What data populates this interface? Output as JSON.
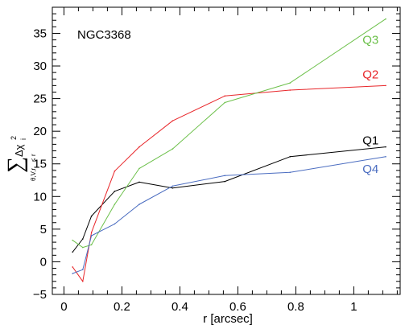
{
  "chart_data": {
    "type": "line",
    "annotation": "NGC3368",
    "xlabel": "r [arcsec]",
    "ylabel": {
      "sum": "∑",
      "term": "Δχ",
      "term_sup": "2",
      "term_sub": "i",
      "sub_line": "θ,V,r",
      "sub_rel": "≤",
      "sub_end": "r"
    },
    "xlim": [
      -0.04,
      1.16
    ],
    "ylim": [
      -5,
      39
    ],
    "xticks": [
      0,
      0.2,
      0.4,
      0.6,
      0.8,
      1
    ],
    "xtick_labels": [
      "0",
      "0.2",
      "0.4",
      "0.6",
      "0.8",
      "1"
    ],
    "yticks": [
      -5,
      0,
      5,
      10,
      15,
      20,
      25,
      30,
      35
    ],
    "ytick_labels": [
      "−5",
      "0",
      "5",
      "10",
      "15",
      "20",
      "25",
      "30",
      "35"
    ],
    "grid": false,
    "series": [
      {
        "name": "Q1",
        "color": "#000000",
        "x": [
          0.03,
          0.065,
          0.095,
          0.175,
          0.26,
          0.375,
          0.555,
          0.78,
          1.11
        ],
        "y": [
          1.5,
          3.5,
          7.0,
          10.8,
          12.2,
          11.3,
          12.3,
          16.1,
          17.6
        ]
      },
      {
        "name": "Q2",
        "color": "#e8262a",
        "x": [
          0.03,
          0.065,
          0.095,
          0.175,
          0.26,
          0.375,
          0.555,
          0.78,
          1.11
        ],
        "y": [
          -0.8,
          -3.0,
          4.5,
          13.9,
          17.6,
          21.6,
          25.4,
          26.3,
          27.0
        ]
      },
      {
        "name": "Q3",
        "color": "#6cc04a",
        "x": [
          0.03,
          0.065,
          0.095,
          0.175,
          0.26,
          0.375,
          0.555,
          0.78,
          1.11
        ],
        "y": [
          3.3,
          2.2,
          2.6,
          8.8,
          14.3,
          17.3,
          24.4,
          27.4,
          37.2
        ]
      },
      {
        "name": "Q4",
        "color": "#4a6cc0",
        "x": [
          0.03,
          0.065,
          0.095,
          0.175,
          0.26,
          0.375,
          0.555,
          0.78,
          1.11
        ],
        "y": [
          -1.8,
          -1.2,
          4.0,
          5.8,
          8.8,
          11.6,
          13.2,
          13.7,
          16.1
        ]
      }
    ],
    "legend": [
      {
        "name": "Q3",
        "color": "#6cc04a",
        "at_x": 1.03,
        "at_y": 33.4
      },
      {
        "name": "Q2",
        "color": "#e8262a",
        "at_x": 1.03,
        "at_y": 28.1
      },
      {
        "name": "Q1",
        "color": "#000000",
        "at_x": 1.03,
        "at_y": 18.0
      },
      {
        "name": "Q4",
        "color": "#4a6cc0",
        "at_x": 1.03,
        "at_y": 13.6
      }
    ]
  }
}
